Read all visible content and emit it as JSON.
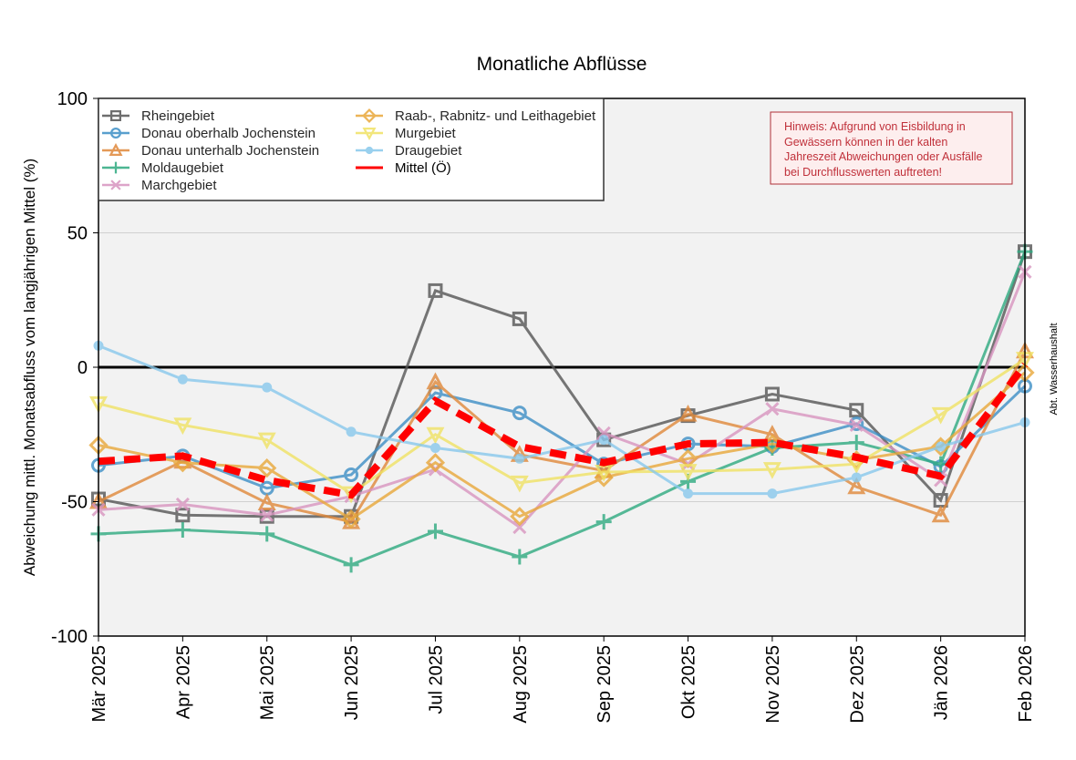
{
  "chart_data": {
    "type": "line",
    "title": "Monatliche Abflüsse",
    "xlabel": "",
    "ylabel": "Abweichung mittl. Monatsabfluss vom langjährigen Mittel (%)",
    "ylim": [
      -100,
      100
    ],
    "yticks": [
      "100",
      "50",
      "0",
      "-50",
      "-100"
    ],
    "grid": true,
    "legend_position": "top-left",
    "categories": [
      "Mär 2025",
      "Apr 2025",
      "Mai 2025",
      "Jun 2025",
      "Jul 2025",
      "Aug 2025",
      "Sep 2025",
      "Okt 2025",
      "Nov 2025",
      "Dez 2025",
      "Jän 2026",
      "Feb 2026"
    ],
    "series": [
      {
        "name": "Rheingebiet",
        "color": "#555555",
        "marker": "square",
        "values": [
          -49,
          -55,
          -55.5,
          -55.5,
          28.5,
          18,
          -27,
          -18,
          -10,
          -16,
          -49.5,
          43
        ]
      },
      {
        "name": "Donau oberhalb Jochenstein",
        "color": "#3d8fc6",
        "marker": "circle",
        "values": [
          -36.5,
          -33,
          -45,
          -40,
          -9.5,
          -17,
          -36,
          -28.5,
          -29.5,
          -21,
          -37,
          -7
        ]
      },
      {
        "name": "Donau unterhalb Jochenstein",
        "color": "#e0883a",
        "marker": "triangle-up",
        "values": [
          -50,
          -35,
          -50.5,
          -57.5,
          -5.5,
          -32.5,
          -38.5,
          -17.5,
          -25,
          -44.5,
          -55,
          6
        ]
      },
      {
        "name": "Moldaugebiet",
        "color": "#2eaa80",
        "marker": "plus",
        "values": [
          -62,
          -60.5,
          -62,
          -73.5,
          -61,
          -70.5,
          -57.5,
          -42.5,
          -30,
          -28,
          -36,
          43
        ]
      },
      {
        "name": "Marchgebiet",
        "color": "#d895c0",
        "marker": "x",
        "values": [
          -53,
          -51,
          -55,
          -48,
          -38,
          -59.5,
          -24.5,
          -36,
          -15.5,
          -21.5,
          -42,
          35.5
        ]
      },
      {
        "name": "Raab-, Rabnitz- und Leithagebiet",
        "color": "#e9a83a",
        "marker": "diamond",
        "values": [
          -29,
          -35.5,
          -37.5,
          -56.5,
          -35.5,
          -55.5,
          -41,
          -34,
          -28.5,
          -34.5,
          -29.5,
          -2
        ]
      },
      {
        "name": "Murgebiet",
        "color": "#f0e264",
        "marker": "triangle-down",
        "values": [
          -13.5,
          -21.5,
          -27,
          -47,
          -25,
          -43,
          -39,
          -38.7,
          -38,
          -36,
          -17.6,
          3
        ]
      },
      {
        "name": "Draugebiet",
        "color": "#88c8ec",
        "marker": "dot",
        "values": [
          8,
          -4.5,
          -7.5,
          -24,
          -30,
          -34,
          -27,
          -47,
          -47,
          -41,
          -29.5,
          -20.5
        ]
      },
      {
        "name": "Mittel (Ö)",
        "color": "#ff0000",
        "marker": "none",
        "dashed": true,
        "values": [
          -35,
          -33,
          -42,
          -47.5,
          -12.5,
          -29.5,
          -35.5,
          -28.5,
          -28,
          -33.5,
          -40.5,
          1
        ]
      }
    ],
    "annotation": {
      "lines": [
        "Hinweis: Aufgrund von Eisbildung in",
        "Gewässern können in der kalten",
        "Jahreszeit Abweichungen oder Ausfälle",
        "bei Durchflusswerten auftreten!"
      ],
      "text_color": "#c0303a"
    },
    "watermark": "Abt. Wasserhaushalt"
  }
}
